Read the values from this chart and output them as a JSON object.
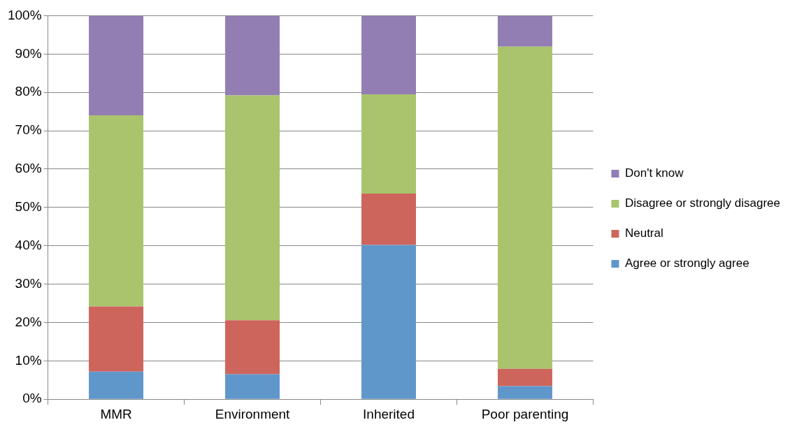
{
  "chart_data": {
    "type": "bar",
    "stacked": true,
    "categories": [
      "MMR",
      "Environment",
      "Inherited",
      "Poor parenting"
    ],
    "series": [
      {
        "name": "Agree or strongly agree",
        "color": "#6097cb",
        "values": [
          7.2,
          6.5,
          40.2,
          3.4
        ]
      },
      {
        "name": "Neutral",
        "color": "#cd655c",
        "values": [
          17,
          14.1,
          13.4,
          4.5
        ]
      },
      {
        "name": "Disagree or strongly disagree",
        "color": "#a9c46c",
        "values": [
          49.8,
          58.6,
          25.9,
          84
        ]
      },
      {
        "name": "Don't know",
        "color": "#937eb3",
        "values": [
          26,
          20.8,
          20.5,
          8.1
        ]
      }
    ],
    "ylim": [
      0,
      100
    ],
    "yticks": [
      {
        "value": 0,
        "label": "0%"
      },
      {
        "value": 10,
        "label": "10%"
      },
      {
        "value": 20,
        "label": "20%"
      },
      {
        "value": 30,
        "label": "30%"
      },
      {
        "value": 40,
        "label": "40%"
      },
      {
        "value": 50,
        "label": "50%"
      },
      {
        "value": 60,
        "label": "60%"
      },
      {
        "value": 70,
        "label": "70%"
      },
      {
        "value": 80,
        "label": "80%"
      },
      {
        "value": 90,
        "label": "90%"
      },
      {
        "value": 100,
        "label": "100%"
      }
    ],
    "grid": "y",
    "legend": "right"
  }
}
